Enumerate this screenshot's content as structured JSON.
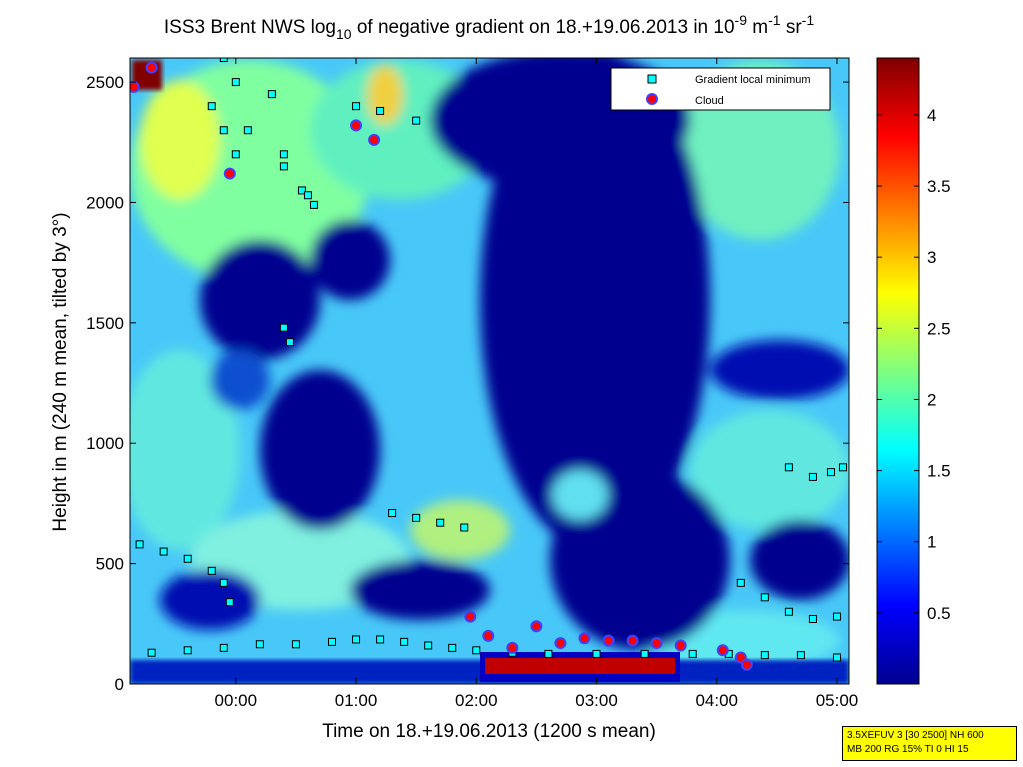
{
  "chart_data": {
    "type": "heatmap",
    "title": {
      "prefix": "ISS3 Brent NWS log",
      "sub": "10",
      "middle": " of negative gradient on 18.+19.06.2013 in 10",
      "exp1": "-9",
      "unit1": " m",
      "exp2": "-1",
      "unit2": " sr",
      "exp3": "-1"
    },
    "xlabel": "Time on 18.+19.06.2013 (1200 s mean)",
    "ylabel": "Height in m (240 m mean, tilted by 3°)",
    "x_ticks": [
      "00:00",
      "01:00",
      "02:00",
      "03:00",
      "04:00",
      "05:00"
    ],
    "y_ticks": [
      "0",
      "500",
      "1000",
      "1500",
      "2000",
      "2500"
    ],
    "ylim": [
      0,
      2600
    ],
    "colorbar": {
      "ticks": [
        "0.5",
        "1",
        "1.5",
        "2",
        "2.5",
        "3",
        "3.5",
        "4"
      ],
      "range": [
        0,
        4.4
      ],
      "colormap": "jet"
    },
    "legend": {
      "position": "top-right",
      "entries": [
        "Gradient local minimum",
        "Cloud"
      ]
    },
    "series": [
      {
        "name": "Gradient local minimum",
        "color": "#00ffff",
        "points": [
          [
            -0.95,
            120
          ],
          [
            -0.7,
            130
          ],
          [
            -0.4,
            140
          ],
          [
            -0.1,
            150
          ],
          [
            0.2,
            165
          ],
          [
            0.5,
            165
          ],
          [
            0.8,
            175
          ],
          [
            1.0,
            185
          ],
          [
            1.2,
            185
          ],
          [
            1.4,
            175
          ],
          [
            1.6,
            160
          ],
          [
            1.8,
            150
          ],
          [
            2.0,
            140
          ],
          [
            2.3,
            130
          ],
          [
            2.6,
            125
          ],
          [
            3.0,
            125
          ],
          [
            3.4,
            125
          ],
          [
            3.8,
            125
          ],
          [
            4.1,
            125
          ],
          [
            4.4,
            120
          ],
          [
            4.7,
            120
          ],
          [
            5.0,
            110
          ],
          [
            -0.8,
            580
          ],
          [
            -0.6,
            550
          ],
          [
            -0.4,
            520
          ],
          [
            -0.2,
            470
          ],
          [
            -0.1,
            420
          ],
          [
            -0.05,
            340
          ],
          [
            1.3,
            710
          ],
          [
            1.5,
            690
          ],
          [
            1.7,
            670
          ],
          [
            1.9,
            650
          ],
          [
            4.2,
            420
          ],
          [
            4.4,
            360
          ],
          [
            4.6,
            300
          ],
          [
            4.8,
            270
          ],
          [
            5.0,
            280
          ],
          [
            4.6,
            900
          ],
          [
            4.8,
            860
          ],
          [
            4.95,
            880
          ],
          [
            5.05,
            900
          ],
          [
            0.4,
            1480
          ],
          [
            0.45,
            1420
          ],
          [
            0.55,
            2050
          ],
          [
            0.6,
            2030
          ],
          [
            0.65,
            1990
          ],
          [
            0.4,
            2150
          ],
          [
            1.0,
            2400
          ],
          [
            1.2,
            2380
          ],
          [
            1.5,
            2340
          ],
          [
            -0.1,
            2600
          ],
          [
            0.0,
            2500
          ],
          [
            -0.2,
            2400
          ],
          [
            -0.1,
            2300
          ],
          [
            0.0,
            2200
          ],
          [
            0.1,
            2300
          ],
          [
            0.3,
            2450
          ],
          [
            0.4,
            2200
          ]
        ]
      },
      {
        "name": "Cloud",
        "color": "#ff0000",
        "points": [
          [
            -0.85,
            2480
          ],
          [
            -0.7,
            2560
          ],
          [
            -0.05,
            2120
          ],
          [
            1.0,
            2320
          ],
          [
            1.15,
            2260
          ],
          [
            1.95,
            280
          ],
          [
            2.1,
            200
          ],
          [
            2.3,
            150
          ],
          [
            2.5,
            240
          ],
          [
            2.7,
            170
          ],
          [
            2.9,
            190
          ],
          [
            3.1,
            180
          ],
          [
            3.3,
            180
          ],
          [
            3.5,
            170
          ],
          [
            3.7,
            160
          ],
          [
            4.05,
            140
          ],
          [
            4.2,
            110
          ],
          [
            4.25,
            80
          ]
        ]
      }
    ]
  },
  "info_box": {
    "line1": "3.5XEFUV 3 [30 2500] NH 600",
    "line2": "MB 200 RG 15% TI 0 HI 15"
  }
}
